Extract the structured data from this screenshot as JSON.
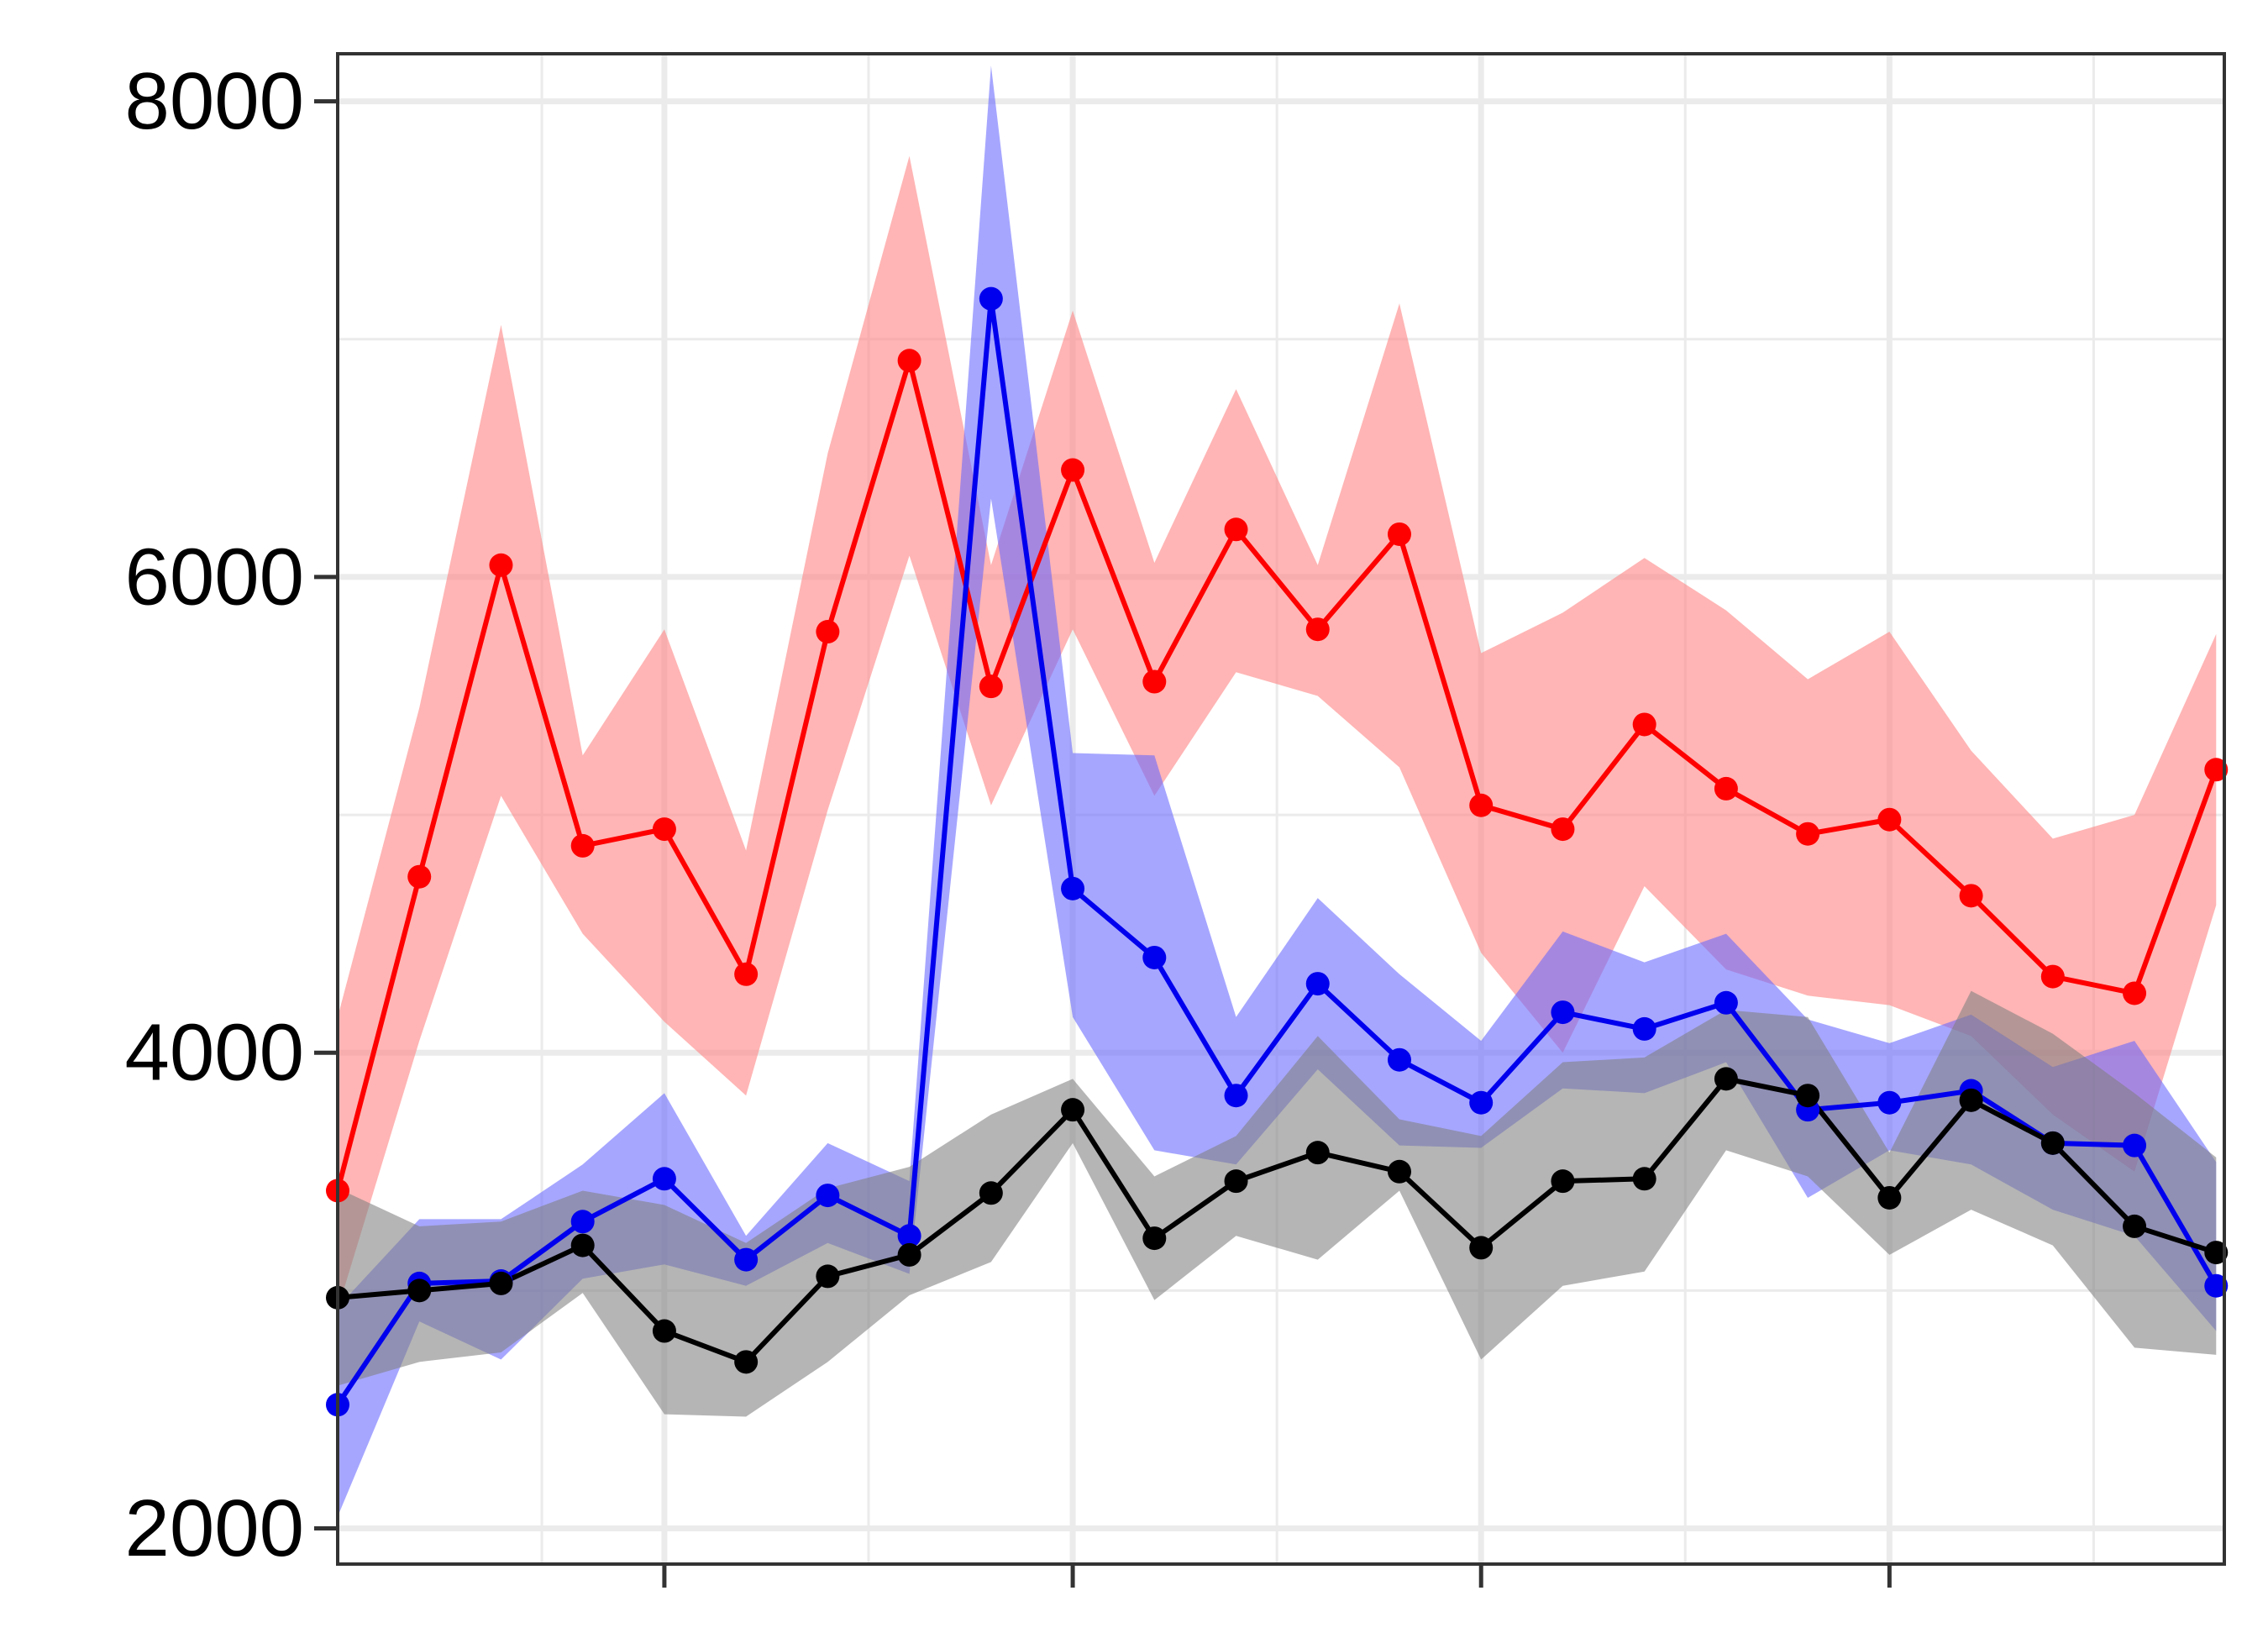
{
  "chart_data": {
    "type": "line",
    "title": "",
    "xlabel": "",
    "ylabel": "",
    "xlim": [
      -3,
      20.1
    ],
    "ylim": [
      1850,
      8200
    ],
    "x_major_ticks": [
      1,
      6,
      11,
      16
    ],
    "x_minor_ticks": [
      -0.5,
      3.5,
      8.5,
      13.5,
      18.5
    ],
    "y_ticks": [
      2000,
      4000,
      6000,
      8000
    ],
    "y_minor_ticks": [
      3000,
      5000,
      7000
    ],
    "y_tick_labels": [
      "2000",
      "4000",
      "6000",
      "8000"
    ],
    "grid": true,
    "x": [
      -3,
      -2,
      -1,
      0,
      1,
      2,
      3,
      4,
      5,
      6,
      7,
      8,
      9,
      10,
      11,
      12,
      13,
      14,
      15,
      16,
      17,
      18,
      19,
      20
    ],
    "series": [
      {
        "color": "#ff0000",
        "band_color": "#ff7f7f",
        "values": [
          3420,
          4740,
          6050,
          4870,
          4940,
          4330,
          5770,
          6910,
          5540,
          6450,
          5560,
          6200,
          5780,
          6180,
          5040,
          4940,
          5380,
          5110,
          4920,
          4980,
          4660,
          4320,
          4250,
          5190
        ],
        "upper": [
          4150,
          5450,
          7060,
          5250,
          5780,
          4850,
          6520,
          7770,
          6050,
          7120,
          6060,
          6790,
          6050,
          7150,
          5680,
          5850,
          6080,
          5860,
          5570,
          5770,
          5270,
          4900,
          5000,
          5760
        ],
        "lower": [
          2920,
          4050,
          5080,
          4500,
          4130,
          3820,
          5020,
          6090,
          5040,
          5780,
          5080,
          5600,
          5500,
          5200,
          4420,
          4000,
          4700,
          4350,
          4240,
          4200,
          4070,
          3740,
          3500,
          4620
        ]
      },
      {
        "color": "#0000ee",
        "band_color": "#6666ff",
        "values": [
          2520,
          3030,
          3040,
          3290,
          3470,
          3130,
          3400,
          3230,
          7170,
          4690,
          4400,
          3820,
          4290,
          3970,
          3790,
          4170,
          4100,
          4210,
          3760,
          3790,
          3840,
          3620,
          3610,
          3020
        ],
        "upper": [
          2930,
          3300,
          3300,
          3530,
          3830,
          3230,
          3620,
          3460,
          8150,
          5260,
          5250,
          4150,
          4650,
          4330,
          4050,
          4510,
          4380,
          4500,
          4140,
          4040,
          4160,
          3940,
          4050,
          3540
        ],
        "lower": [
          2050,
          2870,
          2710,
          3050,
          3110,
          3020,
          3200,
          3070,
          6330,
          4150,
          3590,
          3530,
          3930,
          3610,
          3600,
          3850,
          3830,
          3960,
          3390,
          3590,
          3530,
          3340,
          3230,
          2830
        ]
      },
      {
        "color": "#000000",
        "band_color": "#808080",
        "values": [
          2970,
          3000,
          3030,
          3190,
          2830,
          2700,
          3060,
          3150,
          3410,
          3760,
          3220,
          3460,
          3580,
          3500,
          3180,
          3460,
          3470,
          3890,
          3820,
          3390,
          3800,
          3620,
          3270,
          3160
        ],
        "upper": [
          3430,
          3270,
          3290,
          3420,
          3360,
          3200,
          3430,
          3520,
          3740,
          3890,
          3480,
          3650,
          4070,
          3720,
          3650,
          3960,
          3980,
          4180,
          4150,
          3580,
          4260,
          4080,
          3830,
          3560
        ],
        "lower": [
          2600,
          2700,
          2740,
          2990,
          2480,
          2470,
          2700,
          2980,
          3120,
          3620,
          2960,
          3230,
          3130,
          3420,
          2710,
          3020,
          3080,
          3590,
          3480,
          3150,
          3340,
          3190,
          2760,
          2730
        ]
      }
    ]
  }
}
